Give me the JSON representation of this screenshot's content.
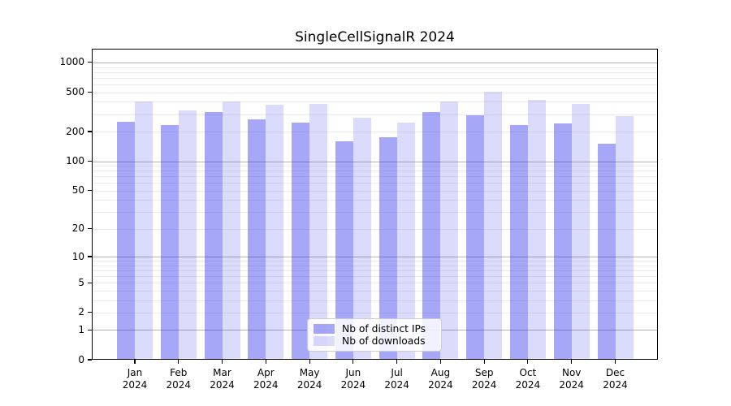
{
  "title": "SingleCellSignalR 2024",
  "chart_data": {
    "type": "bar",
    "title": "SingleCellSignalR 2024",
    "categories": [
      "Jan 2024",
      "Feb 2024",
      "Mar 2024",
      "Apr 2024",
      "May 2024",
      "Jun 2024",
      "Jul 2024",
      "Aug 2024",
      "Sep 2024",
      "Oct 2024",
      "Nov 2024",
      "Dec 2024"
    ],
    "series": [
      {
        "name": "Nb of distinct IPs",
        "base_color": "#2222ee",
        "alpha": 0.4,
        "approx_fill": "#a6a7f5",
        "values": [
          253,
          233,
          313,
          266,
          246,
          159,
          175,
          316,
          293,
          231,
          243,
          150
        ]
      },
      {
        "name": "Nb of downloads",
        "base_color": "#2222ee",
        "alpha": 0.16,
        "approx_fill": "#dcdcfa",
        "values": [
          400,
          325,
          400,
          374,
          382,
          274,
          249,
          406,
          505,
          420,
          384,
          288
        ]
      }
    ],
    "yscale": "log1p",
    "yticks": [
      0,
      1,
      2,
      5,
      10,
      20,
      50,
      100,
      200,
      500,
      1000
    ],
    "ylim": [
      0,
      1400
    ],
    "xlabel": "",
    "ylabel": "",
    "grid": "horizontal",
    "legend_position": "inside-bottom-center"
  },
  "colors": {
    "background": "#ffffff",
    "axis": "#000000",
    "major_grid": "#b3b3b3",
    "minor_grid": "#ebebeb",
    "text": "#000000",
    "legend_border": "#cccccc"
  }
}
